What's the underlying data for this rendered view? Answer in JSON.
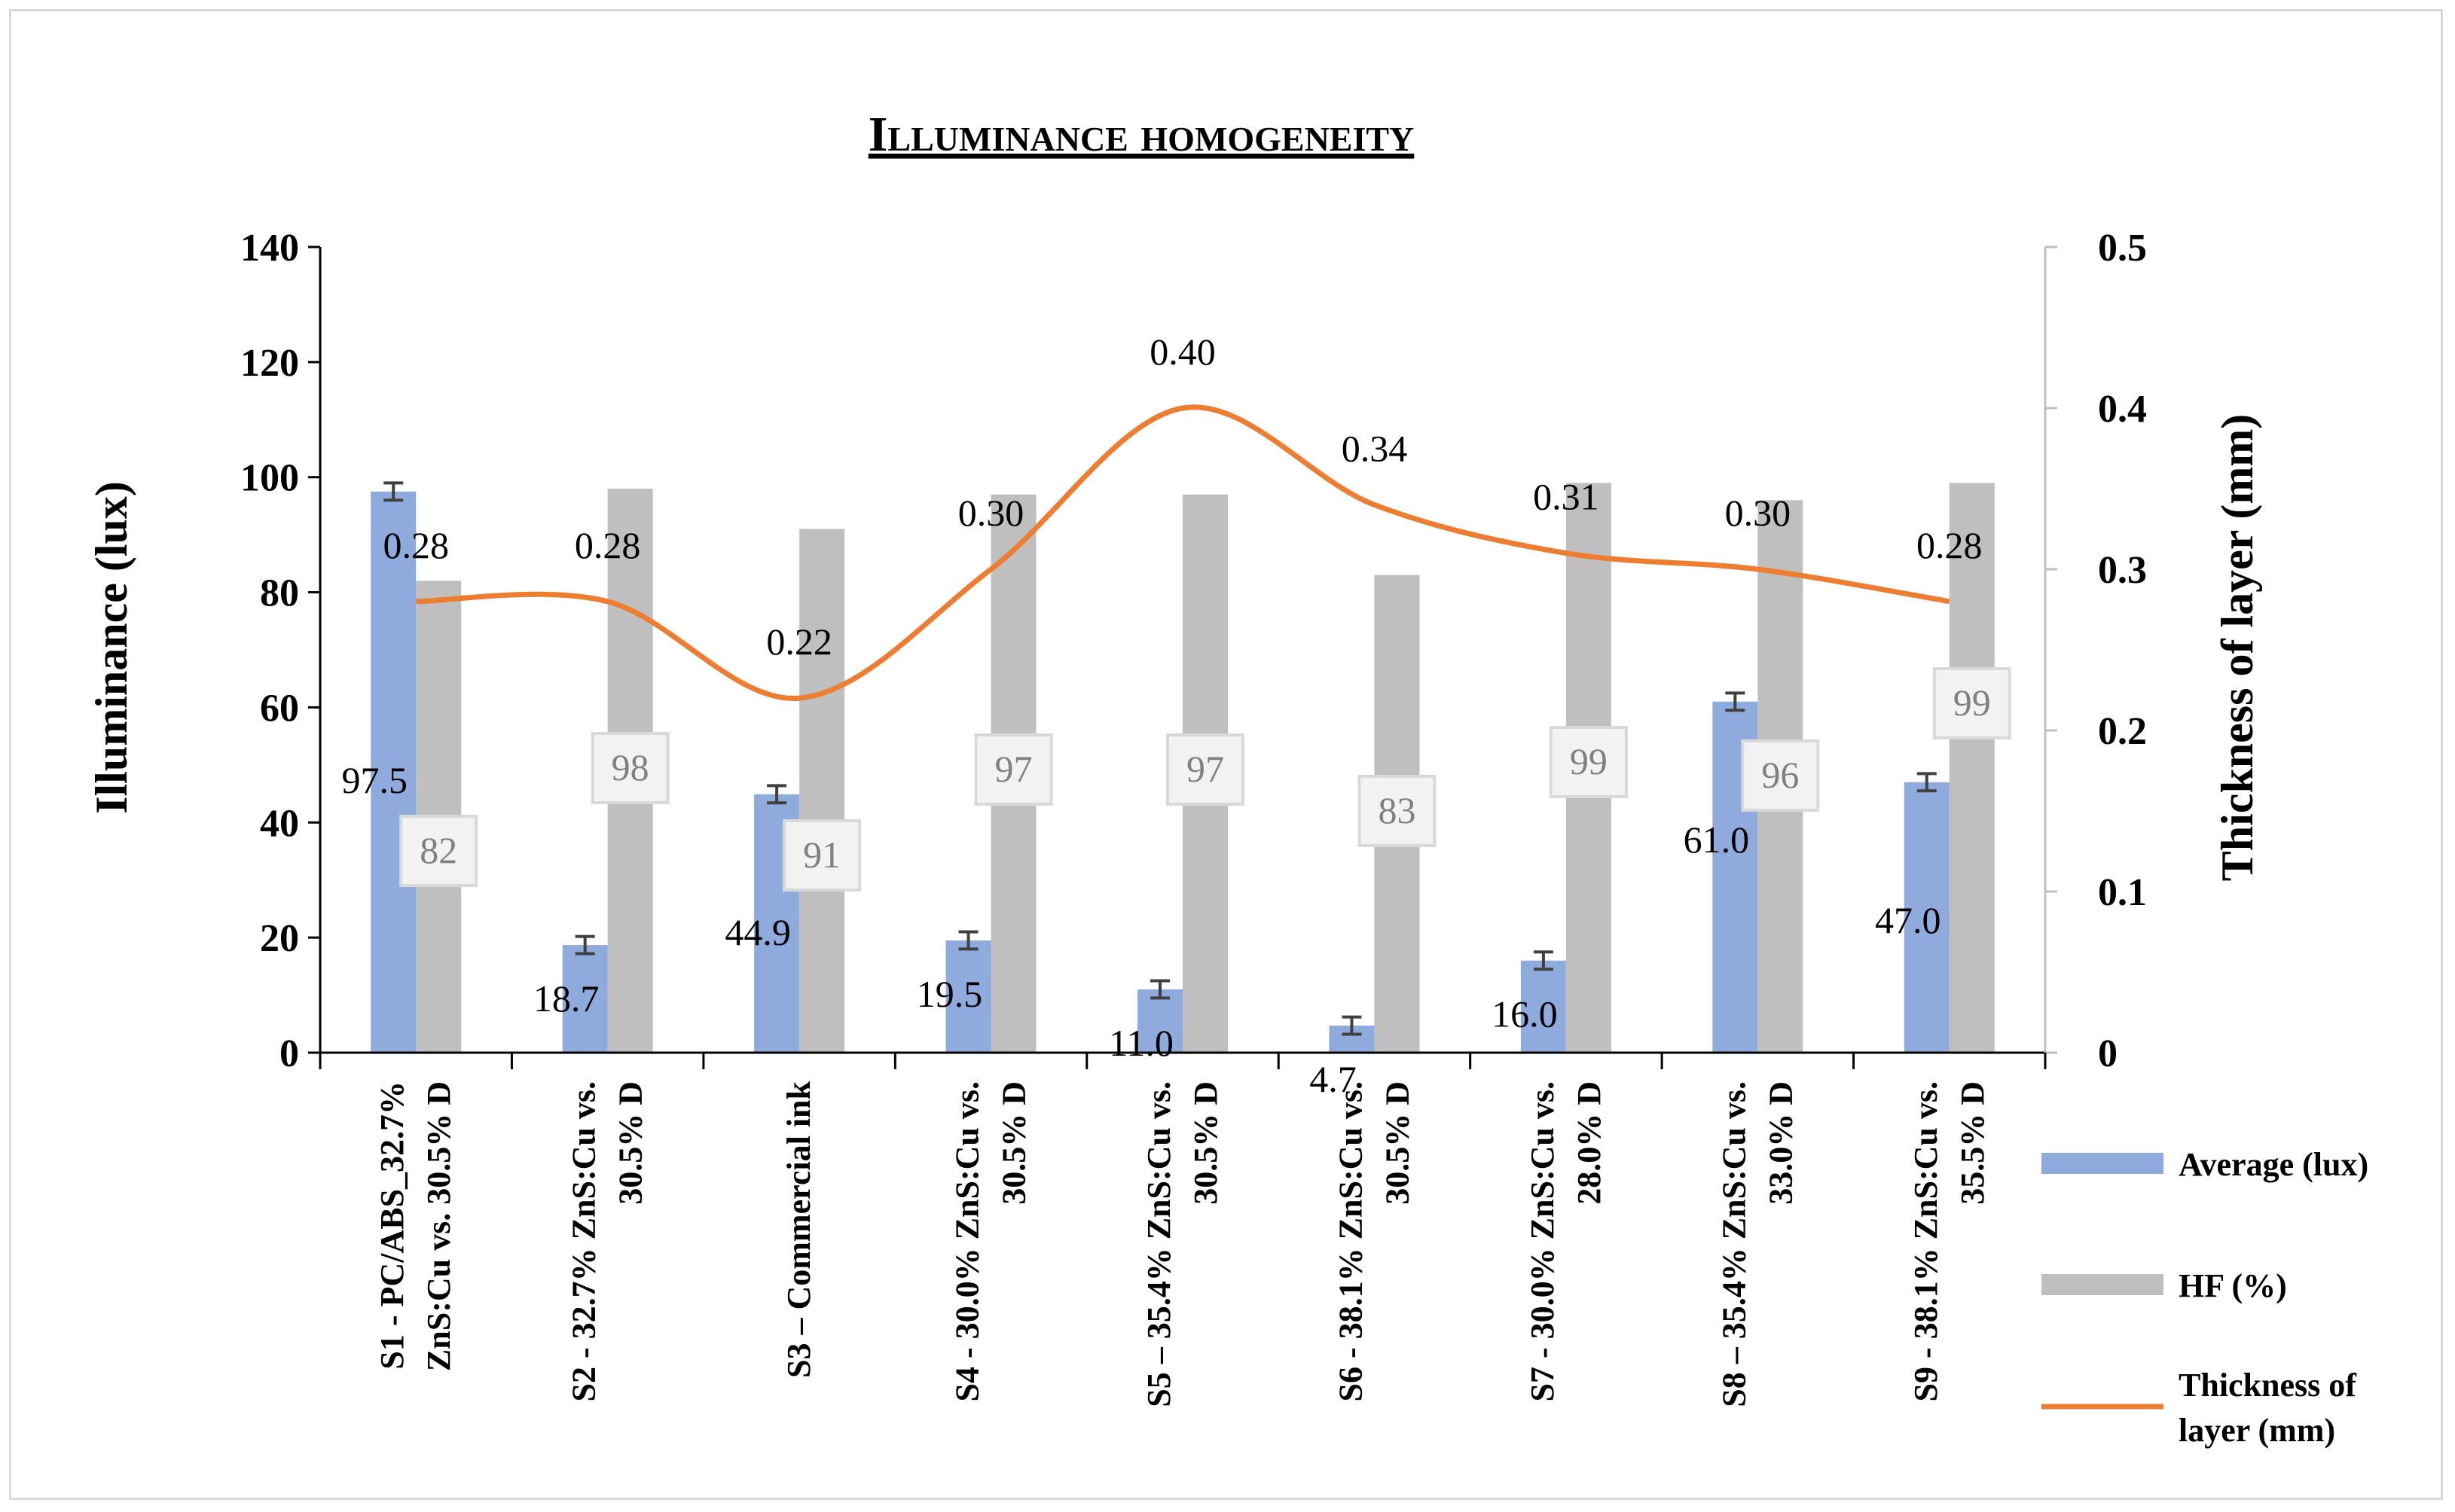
{
  "chart_data": {
    "type": "bar",
    "title": "Illuminance homogeneity",
    "categories": [
      [
        "S1 - PC/ABS_32.7%",
        "ZnS:Cu vs. 30.5% D"
      ],
      [
        "S2 - 32.7% ZnS:Cu vs.",
        "30.5% D"
      ],
      [
        "S3 – Commercial ink"
      ],
      [
        "S4 - 30.0% ZnS:Cu vs.",
        "30.5% D"
      ],
      [
        "S5 – 35.4% ZnS:Cu vs.",
        "30.5% D"
      ],
      [
        "S6 - 38.1% ZnS:Cu vs.",
        "30.5% D"
      ],
      [
        "S7 - 30.0% ZnS:Cu vs.",
        "28.0% D"
      ],
      [
        "S8 – 35.4% ZnS:Cu vs.",
        "33.0% D"
      ],
      [
        "S9 - 38.1% ZnS:Cu vs.",
        "35.5% D"
      ]
    ],
    "series": [
      {
        "name": "Average (lux)",
        "type": "bar",
        "axis": "left",
        "color": "#8faadc",
        "values": [
          97.5,
          18.7,
          44.9,
          19.5,
          11.0,
          4.7,
          16.0,
          61.0,
          47.0
        ],
        "labels": [
          "97.5",
          "18.7",
          "44.9",
          "19.5",
          "11.0",
          "4.7",
          "16.0",
          "61.0",
          "47.0"
        ],
        "error": [
          1.5,
          1.5,
          1.5,
          1.5,
          1.5,
          1.5,
          1.5,
          1.5,
          1.5
        ]
      },
      {
        "name": "HF (%)",
        "type": "bar",
        "axis": "left",
        "color": "#bfbfbf",
        "values": [
          82,
          98,
          91,
          97,
          97,
          83,
          99,
          96,
          99
        ],
        "labels": [
          "82",
          "98",
          "91",
          "97",
          "97",
          "83",
          "99",
          "96",
          "99"
        ]
      },
      {
        "name": "Thickness of layer (mm)",
        "type": "line",
        "axis": "right",
        "color": "#ed7d31",
        "values": [
          0.28,
          0.28,
          0.22,
          0.3,
          0.4,
          0.34,
          0.31,
          0.3,
          0.28
        ],
        "labels": [
          "0.28",
          "0.28",
          "0.22",
          "0.30",
          "0.40",
          "0.34",
          "0.31",
          "0.30",
          "0.28"
        ]
      }
    ],
    "ylabel": "Illuminance (lux)",
    "y2label": "Thickness of layer (mm)",
    "ylim": [
      0,
      140
    ],
    "yticks": [
      "0",
      "20",
      "40",
      "60",
      "80",
      "100",
      "120",
      "140"
    ],
    "y2lim": [
      0,
      0.5
    ],
    "y2ticks": [
      "0",
      "0.1",
      "0.2",
      "0.3",
      "0.4",
      "0.5"
    ],
    "legend": {
      "position": "right",
      "items": [
        [
          "Average (lux)"
        ],
        [
          "HF (%)"
        ],
        [
          "Thickness of",
          "layer (mm)"
        ]
      ]
    }
  }
}
